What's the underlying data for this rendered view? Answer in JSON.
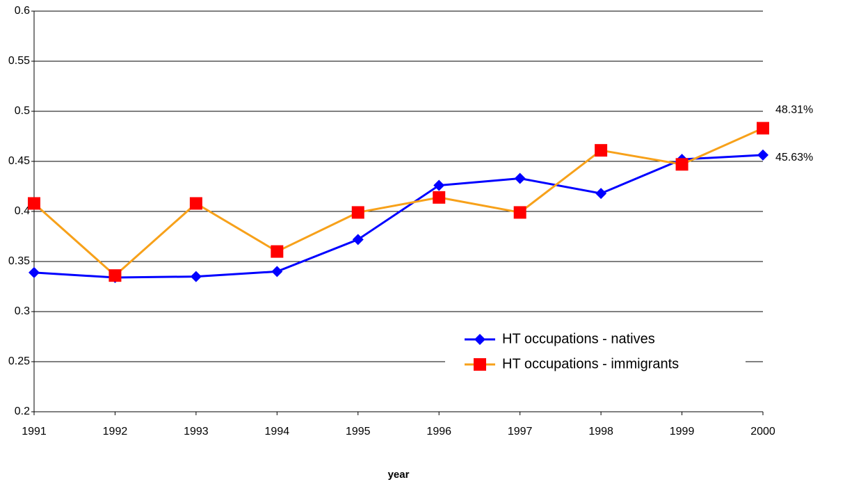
{
  "chart_data": {
    "type": "line",
    "x_label": "year",
    "categories": [
      "1991",
      "1992",
      "1993",
      "1994",
      "1995",
      "1996",
      "1997",
      "1998",
      "1999",
      "2000"
    ],
    "series": [
      {
        "name": "HT occupations - natives",
        "color": "#0000ff",
        "marker_color": "#0000ff",
        "marker": "diamond",
        "values": [
          0.339,
          0.334,
          0.335,
          0.34,
          0.372,
          0.426,
          0.433,
          0.418,
          0.452,
          0.4563
        ],
        "value_labels": [
          null,
          null,
          null,
          null,
          null,
          null,
          null,
          null,
          null,
          "45.63%"
        ]
      },
      {
        "name": "HT occupations - immigrants",
        "color": "#f7a11a",
        "marker_color": "#ff0000",
        "marker": "square",
        "values": [
          0.408,
          0.336,
          0.408,
          0.36,
          0.399,
          0.414,
          0.399,
          0.461,
          0.447,
          0.4831
        ],
        "value_labels": [
          null,
          null,
          null,
          null,
          null,
          null,
          null,
          null,
          null,
          "48.31%"
        ]
      }
    ],
    "ylim": [
      0.2,
      0.6
    ],
    "yticks": [
      0.2,
      0.25,
      0.3,
      0.35,
      0.4,
      0.45,
      0.5,
      0.55,
      0.6
    ],
    "grid": true,
    "legend": "lower right"
  }
}
